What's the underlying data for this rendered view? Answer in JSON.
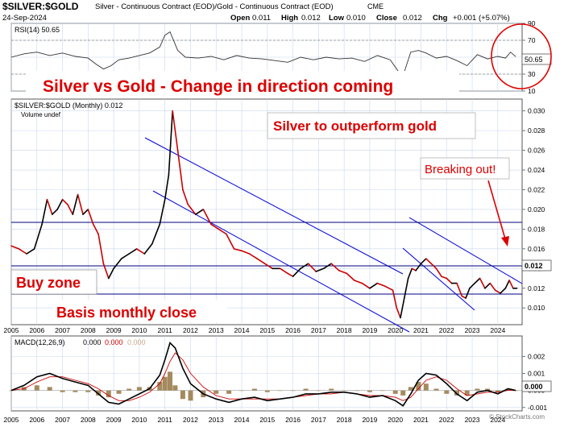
{
  "header": {
    "symbol": "$SILVER:$GOLD",
    "description": "Silver - Continuous Contract (EOD)/Gold - Continuous Contract (EOD)",
    "exchange": "CME",
    "date": "24-Sep-2024",
    "open_label": "Open",
    "open": "0.011",
    "high_label": "High",
    "high": "0.012",
    "low_label": "Low",
    "low": "0.010",
    "close_label": "Close",
    "close": "0.012",
    "chg_label": "Chg",
    "chg": "+0.001 (+5.07%)",
    "watermark": "© StockCharts.com"
  },
  "annotations": {
    "title": "Silver vs Gold  -  Change in direction coming",
    "outperform": "Silver to outperform gold",
    "breaking_out": "Breaking out!",
    "buy_zone": "Buy zone",
    "basis": "Basis monthly close"
  },
  "colors": {
    "price_up": "#000000",
    "price_down": "#cc0000",
    "channel": "#0000dd",
    "annotation_red": "#dd0000",
    "grid": "#c8d8ee",
    "macd_hist": "#a48a5e",
    "macd_signal": "#cc0000"
  },
  "chart_data": [
    {
      "panel": "rsi",
      "type": "line",
      "legend": "RSI(14) 50.65",
      "last_value": "50.65",
      "ylim": [
        10,
        90
      ],
      "y_ticks": [
        "10",
        "30",
        "50",
        "70",
        "90"
      ],
      "reference_lines": [
        30,
        70
      ],
      "x": [
        2005.0,
        2005.5,
        2006.0,
        2006.5,
        2007.0,
        2007.5,
        2008.0,
        2008.3,
        2008.6,
        2008.9,
        2009.2,
        2009.6,
        2010.0,
        2010.4,
        2010.8,
        2011.0,
        2011.2,
        2011.5,
        2011.8,
        2012.3,
        2012.8,
        2013.3,
        2013.8,
        2014.3,
        2014.8,
        2015.3,
        2015.8,
        2016.3,
        2016.8,
        2017.3,
        2017.8,
        2018.3,
        2018.8,
        2019.3,
        2019.8,
        2020.1,
        2020.3,
        2020.6,
        2020.9,
        2021.2,
        2021.6,
        2022.0,
        2022.4,
        2022.8,
        2023.2,
        2023.6,
        2024.0,
        2024.3,
        2024.5,
        2024.7
      ],
      "values": [
        50,
        54,
        56,
        52,
        55,
        51,
        49,
        42,
        36,
        40,
        47,
        49,
        52,
        55,
        62,
        76,
        80,
        58,
        50,
        49,
        51,
        47,
        52,
        49,
        48,
        46,
        44,
        50,
        47,
        50,
        48,
        49,
        45,
        52,
        47,
        34,
        28,
        56,
        58,
        55,
        49,
        51,
        46,
        40,
        53,
        48,
        51,
        49,
        56,
        50.65
      ]
    },
    {
      "panel": "price",
      "type": "line",
      "legend": "$SILVER:$GOLD (Monthly) 0.012",
      "volume_label": "Volume undef",
      "last_value": "0.012",
      "ylim": [
        0.0083,
        0.0312
      ],
      "y_ticks": [
        "0.010",
        "0.012",
        "0.014",
        "0.016",
        "0.018",
        "0.020",
        "0.022",
        "0.024",
        "0.026",
        "0.028",
        "0.030"
      ],
      "x_ticks": [
        "2005",
        "2006",
        "2007",
        "2008",
        "2009",
        "2010",
        "2011",
        "2012",
        "2013",
        "2014",
        "2015",
        "2016",
        "2017",
        "2018",
        "2019",
        "2020",
        "2021",
        "2022",
        "2023",
        "2024"
      ],
      "x": [
        2005.0,
        2005.3,
        2005.6,
        2005.9,
        2006.2,
        2006.4,
        2006.6,
        2006.8,
        2007.0,
        2007.2,
        2007.4,
        2007.6,
        2007.8,
        2008.0,
        2008.2,
        2008.4,
        2008.6,
        2008.8,
        2009.0,
        2009.3,
        2009.6,
        2009.9,
        2010.2,
        2010.5,
        2010.8,
        2011.0,
        2011.15,
        2011.3,
        2011.5,
        2011.7,
        2011.9,
        2012.2,
        2012.5,
        2012.8,
        2013.1,
        2013.4,
        2013.7,
        2014.0,
        2014.3,
        2014.6,
        2014.9,
        2015.2,
        2015.5,
        2015.8,
        2016.0,
        2016.3,
        2016.6,
        2016.9,
        2017.2,
        2017.5,
        2017.8,
        2018.1,
        2018.4,
        2018.7,
        2019.0,
        2019.3,
        2019.6,
        2019.9,
        2020.05,
        2020.2,
        2020.35,
        2020.5,
        2020.65,
        2020.8,
        2021.0,
        2021.2,
        2021.4,
        2021.6,
        2021.8,
        2022.0,
        2022.2,
        2022.4,
        2022.6,
        2022.75,
        2022.9,
        2023.1,
        2023.3,
        2023.5,
        2023.7,
        2023.9,
        2024.1,
        2024.3,
        2024.45,
        2024.6,
        2024.75
      ],
      "values": [
        0.0163,
        0.016,
        0.0155,
        0.016,
        0.0185,
        0.021,
        0.0195,
        0.02,
        0.021,
        0.0205,
        0.0195,
        0.0215,
        0.0195,
        0.02,
        0.0185,
        0.0175,
        0.0145,
        0.013,
        0.014,
        0.015,
        0.0155,
        0.016,
        0.0155,
        0.0165,
        0.0185,
        0.021,
        0.0235,
        0.03,
        0.026,
        0.022,
        0.0205,
        0.0195,
        0.02,
        0.0185,
        0.018,
        0.0175,
        0.016,
        0.0158,
        0.0155,
        0.015,
        0.0145,
        0.014,
        0.014,
        0.0135,
        0.0132,
        0.014,
        0.0145,
        0.0137,
        0.014,
        0.0145,
        0.0138,
        0.0135,
        0.0128,
        0.0125,
        0.012,
        0.0125,
        0.0122,
        0.0118,
        0.01,
        0.009,
        0.011,
        0.013,
        0.014,
        0.0138,
        0.0145,
        0.015,
        0.0145,
        0.014,
        0.0132,
        0.013,
        0.0125,
        0.0125,
        0.0112,
        0.011,
        0.012,
        0.0125,
        0.013,
        0.012,
        0.0125,
        0.0118,
        0.0115,
        0.012,
        0.0128,
        0.012,
        0.012
      ]
    },
    {
      "panel": "macd",
      "type": "line",
      "legend_name": "MACD(12,26,9)",
      "legend_values": [
        "0.000",
        "0.000",
        "0.000"
      ],
      "last_value": "0.000",
      "ylim": [
        -0.0012,
        0.0032
      ],
      "y_ticks": [
        "-0.001",
        "0.000",
        "0.001",
        "0.002"
      ],
      "x": [
        2005.0,
        2005.5,
        2006.0,
        2006.5,
        2007.0,
        2007.5,
        2008.0,
        2008.4,
        2008.8,
        2009.2,
        2009.6,
        2010.0,
        2010.4,
        2010.8,
        2011.0,
        2011.2,
        2011.4,
        2011.7,
        2012.0,
        2012.5,
        2013.0,
        2013.5,
        2014.0,
        2014.5,
        2015.0,
        2015.5,
        2016.0,
        2016.5,
        2017.0,
        2017.5,
        2018.0,
        2018.5,
        2019.0,
        2019.5,
        2020.0,
        2020.3,
        2020.6,
        2020.9,
        2021.2,
        2021.6,
        2022.0,
        2022.4,
        2022.8,
        2023.2,
        2023.6,
        2024.0,
        2024.4,
        2024.7
      ],
      "values": [
        0.0,
        0.0003,
        0.0008,
        0.001,
        0.0007,
        0.0005,
        0.0003,
        -0.0002,
        -0.0007,
        -0.0008,
        -0.0005,
        -0.0002,
        0.0001,
        0.0009,
        0.0018,
        0.0028,
        0.0025,
        0.0013,
        0.0004,
        -0.0002,
        -0.0005,
        -0.0007,
        -0.0005,
        -0.0004,
        -0.0006,
        -0.0005,
        -0.0004,
        -0.0002,
        -0.0002,
        -0.0001,
        -0.0001,
        -0.0002,
        -0.0004,
        -0.0003,
        -0.0006,
        -0.0009,
        -0.0002,
        0.0006,
        0.001,
        0.0009,
        0.0004,
        -0.0002,
        -0.0006,
        -0.0001,
        0.0,
        -0.0002,
        0.0001,
        0.0
      ],
      "signal": [
        0.0,
        0.0001,
        0.0005,
        0.0008,
        0.0008,
        0.0006,
        0.0004,
        0.0001,
        -0.0003,
        -0.0006,
        -0.0006,
        -0.0004,
        -0.0001,
        0.0004,
        0.001,
        0.0017,
        0.0022,
        0.0018,
        0.001,
        0.0002,
        -0.0003,
        -0.0005,
        -0.0005,
        -0.0005,
        -0.0005,
        -0.0005,
        -0.0004,
        -0.0003,
        -0.0002,
        -0.0002,
        -0.0001,
        -0.0002,
        -0.0003,
        -0.0003,
        -0.0004,
        -0.0006,
        -0.0004,
        0.0001,
        0.0006,
        0.0008,
        0.0006,
        0.0001,
        -0.0003,
        -0.0002,
        -0.0001,
        -0.0001,
        0.0,
        0.0
      ]
    }
  ]
}
